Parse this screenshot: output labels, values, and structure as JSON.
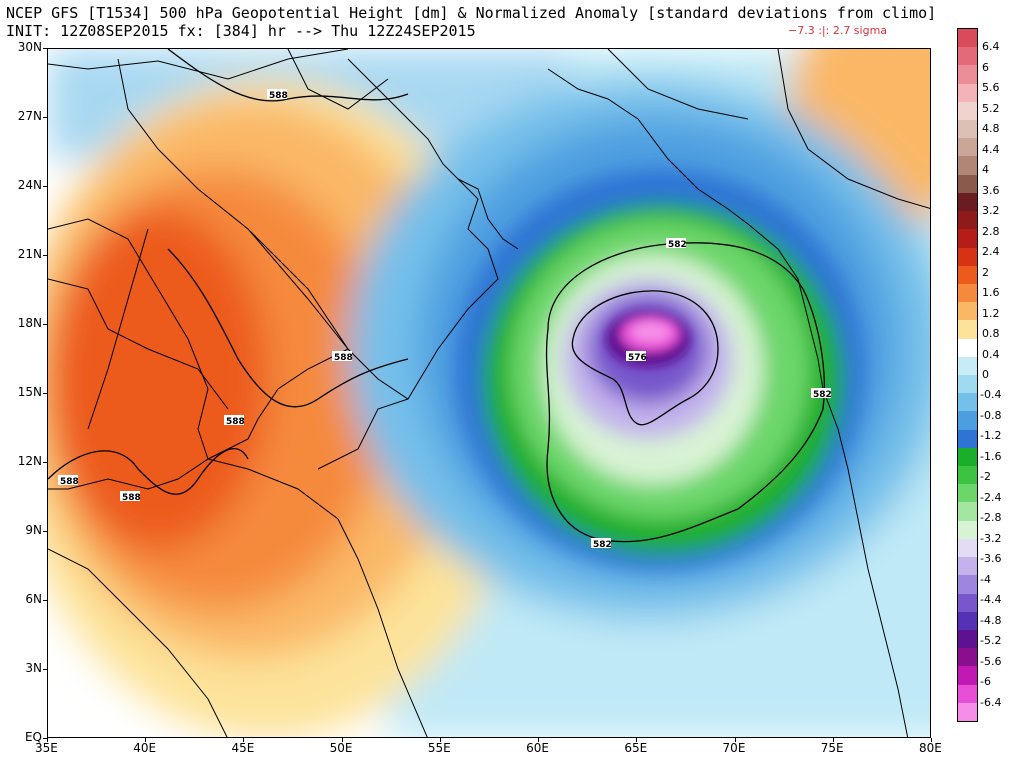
{
  "header": {
    "title_line1": "NCEP GFS [T1534] 500 hPa Geopotential Height [dm] & Normalized Anomaly [standard deviations from climo]",
    "title_line2": "INIT: 12Z08SEP2015 fx: [384] hr --> Thu 12Z24SEP2015",
    "range_text": "−7.3 :|:   2.7 sigma"
  },
  "axes": {
    "lat_labels": [
      "30N",
      "27N",
      "24N",
      "21N",
      "18N",
      "15N",
      "12N",
      "9N",
      "6N",
      "3N",
      "EQ"
    ],
    "lon_labels": [
      "35E",
      "40E",
      "45E",
      "50E",
      "55E",
      "60E",
      "65E",
      "70E",
      "75E",
      "80E"
    ]
  },
  "colorbar": {
    "labels": [
      "6.4",
      "6",
      "5.6",
      "5.2",
      "4.8",
      "4.4",
      "4",
      "3.6",
      "3.2",
      "2.8",
      "2.4",
      "2",
      "1.6",
      "1.2",
      "0.8",
      "0.4",
      "0",
      "-0.4",
      "-0.8",
      "-1.2",
      "-1.6",
      "-2",
      "-2.4",
      "-2.8",
      "-3.2",
      "-3.6",
      "-4",
      "-4.4",
      "-4.8",
      "-5.2",
      "-5.6",
      "-6",
      "-6.4"
    ],
    "colors": [
      "#d94b5a",
      "#e36a78",
      "#ec8d98",
      "#f4b3b8",
      "#f0d2cf",
      "#dcc0b6",
      "#c9a698",
      "#b08677",
      "#8a5a4d",
      "#6a1d20",
      "#8e1a1a",
      "#b51d18",
      "#d63316",
      "#ec5a1c",
      "#f58a3c",
      "#fab866",
      "#fde39a",
      "#ffffff",
      "#c8ecf7",
      "#9fdaf1",
      "#74c0ea",
      "#4d9ee0",
      "#2f74d4",
      "#1bae2a",
      "#3dc342",
      "#6cd66b",
      "#a3e6a0",
      "#d8f3d4",
      "#e3dcf5",
      "#c3b2ec",
      "#9d86dd",
      "#7757cb",
      "#5431b5",
      "#5e1190",
      "#8a0f8e",
      "#c219b4",
      "#e84fd6",
      "#f68de8"
    ]
  },
  "map": {
    "contour_labels": [
      "588",
      "588",
      "588",
      "588",
      "588",
      "582",
      "582",
      "582",
      "576"
    ]
  }
}
